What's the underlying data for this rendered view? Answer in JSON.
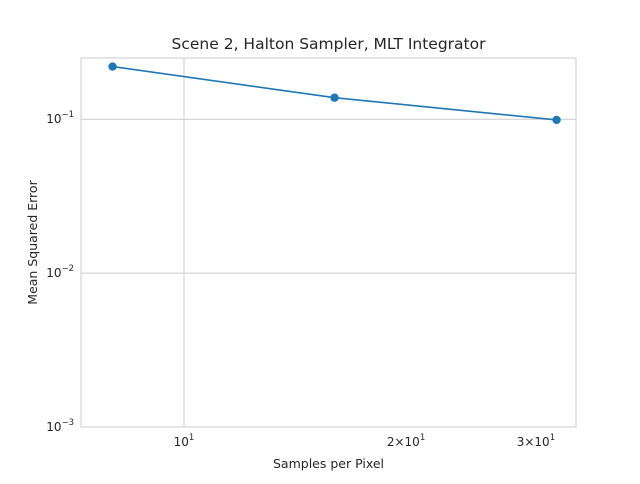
{
  "chart_data": {
    "type": "line",
    "title": "Scene 2, Halton Sampler, MLT Integrator",
    "xlabel": "Samples per Pixel",
    "ylabel": "Mean Squared Error",
    "xscale": "log",
    "yscale": "log",
    "xlim": [
      7.25,
      34
    ],
    "ylim": [
      0.001,
      0.25
    ],
    "grid": true,
    "legend": "none",
    "series": [
      {
        "x": [
          8,
          16,
          32
        ],
        "y": [
          0.22,
          0.138,
          0.099
        ],
        "color": "#1f77b4",
        "marker": "circle"
      }
    ],
    "x_ticks": [
      {
        "value": 10,
        "base": "10",
        "exp": "1",
        "coef": ""
      },
      {
        "value": 20,
        "base": "10",
        "exp": "1",
        "coef": "2"
      },
      {
        "value": 30,
        "base": "10",
        "exp": "1",
        "coef": "3"
      }
    ],
    "y_ticks": [
      {
        "value": 0.001,
        "base": "10",
        "exp": "−3"
      },
      {
        "value": 0.01,
        "base": "10",
        "exp": "−2"
      },
      {
        "value": 0.1,
        "base": "10",
        "exp": "−1"
      }
    ],
    "colors": {
      "grid": "#cccccc",
      "spine": "#cccccc",
      "line": "#1f77b4"
    }
  }
}
